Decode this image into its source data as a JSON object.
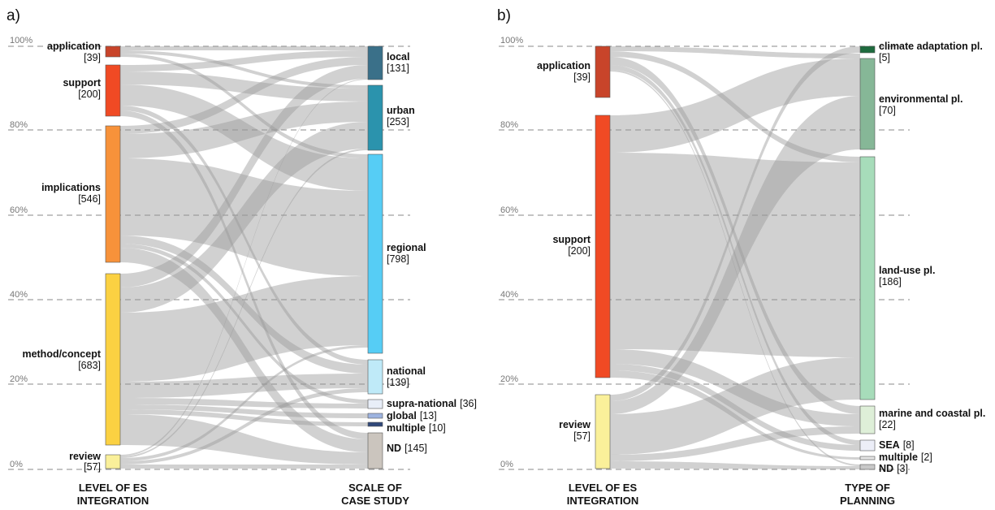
{
  "panels": [
    {
      "label": "a)",
      "gridlines": [
        "100%",
        "80%",
        "60%",
        "40%",
        "20%",
        "0%"
      ],
      "left_title": [
        "LEVEL OF ES",
        "INTEGRATION"
      ],
      "right_title": [
        "SCALE OF",
        "CASE STUDY"
      ],
      "left_nodes": [
        {
          "name": "application",
          "count": "[39]",
          "color": "#c8442a"
        },
        {
          "name": "support",
          "count": "[200]",
          "color": "#f04a24"
        },
        {
          "name": "implications",
          "count": "[546]",
          "color": "#f7923a"
        },
        {
          "name": "method/concept",
          "count": "[683]",
          "color": "#fbd142"
        },
        {
          "name": "review",
          "count": "[57]",
          "color": "#faf09a"
        }
      ],
      "right_nodes": [
        {
          "name": "local",
          "count": "[131]",
          "color": "#3a7089"
        },
        {
          "name": "urban",
          "count": "[253]",
          "color": "#2b93ad"
        },
        {
          "name": "regional",
          "count": "[798]",
          "color": "#56cdf5"
        },
        {
          "name": "national",
          "count": "[139]",
          "color": "#bfeaf8"
        },
        {
          "name": "supra-national",
          "count": "[36]",
          "color": "#e8eef8"
        },
        {
          "name": "global",
          "count": "[13]",
          "color": "#9db3e0"
        },
        {
          "name": "multiple",
          "count": "[10]",
          "color": "#30487a"
        },
        {
          "name": "ND",
          "count": "[145]",
          "color": "#cbc5be"
        }
      ]
    },
    {
      "label": "b)",
      "gridlines": [
        "100%",
        "80%",
        "60%",
        "40%",
        "20%",
        "0%"
      ],
      "left_title": [
        "LEVEL OF ES",
        "INTEGRATION"
      ],
      "right_title": [
        "TYPE OF",
        "PLANNING"
      ],
      "left_nodes": [
        {
          "name": "application",
          "count": "[39]",
          "color": "#c8442a"
        },
        {
          "name": "support",
          "count": "[200]",
          "color": "#f04a24"
        },
        {
          "name": "review",
          "count": "[57]",
          "color": "#faf09a"
        }
      ],
      "right_nodes": [
        {
          "name": "climate adaptation pl.",
          "count": "[5]",
          "color": "#1e6b3e"
        },
        {
          "name": "environmental pl.",
          "count": "[70]",
          "color": "#86b797"
        },
        {
          "name": "land-use pl.",
          "count": "[186]",
          "color": "#a7dcba"
        },
        {
          "name": "marine and coastal pl.",
          "count": "[22]",
          "color": "#deefd8"
        },
        {
          "name": "SEA",
          "count": "[8]",
          "color": "#eceef8"
        },
        {
          "name": "multiple",
          "count": "[2]",
          "color": "#e4e4e4"
        },
        {
          "name": "ND",
          "count": "[3]",
          "color": "#c8c8c8"
        }
      ]
    }
  ]
}
